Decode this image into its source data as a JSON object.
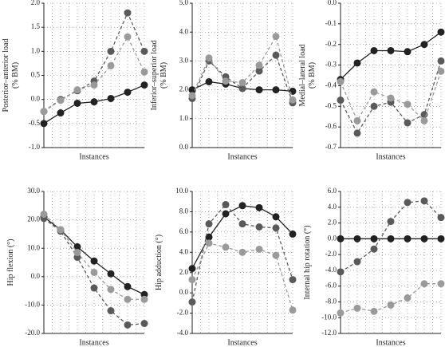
{
  "chart_data": [
    {
      "type": "line",
      "ylabel": [
        "Posterior–anterior load",
        "(% BM)"
      ],
      "xlabel": "Instances",
      "categories": [
        null,
        null,
        null,
        null,
        null,
        null,
        null
      ],
      "ylim": [
        -1,
        2
      ],
      "yticks": [
        {
          "value": -1,
          "label": "-1.0"
        },
        {
          "value": -0.5,
          "label": "-0.5"
        },
        {
          "value": 0,
          "label": "0.0"
        },
        {
          "value": 0.5,
          "label": "0.5"
        },
        {
          "value": 1,
          "label": "1.0"
        },
        {
          "value": 1.5,
          "label": "1.5"
        },
        {
          "value": 2,
          "label": "2.0"
        }
      ],
      "grid": true,
      "series": [
        {
          "color": "#222222",
          "values": [
            -0.5,
            -0.28,
            -0.08,
            -0.05,
            0.02,
            0.15,
            0.3
          ]
        },
        {
          "color": "#5a5a5a",
          "values": [
            -0.25,
            0.0,
            0.18,
            0.38,
            1.0,
            1.8,
            1.0
          ]
        },
        {
          "color": "#9a9a9a",
          "values": [
            -0.25,
            -0.02,
            0.2,
            0.3,
            0.7,
            1.3,
            0.57
          ]
        }
      ]
    },
    {
      "type": "line",
      "ylabel": [
        "Inferior–superior load",
        "(% BM)"
      ],
      "xlabel": "Instances",
      "categories": [
        null,
        null,
        null,
        null,
        null,
        null,
        null
      ],
      "ylim": [
        0,
        5
      ],
      "yticks": [
        {
          "value": 0,
          "label": "0.0"
        },
        {
          "value": 1,
          "label": "1.0"
        },
        {
          "value": 2,
          "label": "2.0"
        },
        {
          "value": 3,
          "label": "3.0"
        },
        {
          "value": 4,
          "label": "4.0"
        },
        {
          "value": 5,
          "label": "5.0"
        }
      ],
      "grid": true,
      "series": [
        {
          "color": "#222222",
          "values": [
            2.0,
            2.28,
            2.2,
            2.05,
            2.0,
            2.0,
            1.95
          ]
        },
        {
          "color": "#5a5a5a",
          "values": [
            1.7,
            3.0,
            2.45,
            2.05,
            2.65,
            3.2,
            1.55
          ]
        },
        {
          "color": "#9a9a9a",
          "values": [
            1.8,
            3.1,
            2.3,
            2.25,
            2.85,
            3.85,
            1.65
          ]
        }
      ]
    },
    {
      "type": "line",
      "ylabel": [
        "Medial–lateral load",
        "(% BM)"
      ],
      "xlabel": "Instances",
      "categories": [
        null,
        null,
        null,
        null,
        null,
        null,
        null
      ],
      "ylim": [
        -0.7,
        0
      ],
      "yticks": [
        -0.7,
        -0.6,
        -0.5,
        -0.4,
        -0.3,
        -0.2,
        -0.1,
        {
          "value": 0,
          "label": "0.0"
        }
      ],
      "grid": true,
      "series": [
        {
          "color": "#222222",
          "values": [
            -0.37,
            -0.29,
            -0.23,
            -0.23,
            -0.235,
            -0.2,
            -0.14
          ]
        },
        {
          "color": "#5a5a5a",
          "values": [
            -0.47,
            -0.63,
            -0.5,
            -0.48,
            -0.58,
            -0.54,
            -0.28
          ]
        },
        {
          "color": "#9a9a9a",
          "values": [
            -0.38,
            -0.57,
            -0.43,
            -0.46,
            -0.49,
            -0.57,
            -0.33
          ]
        }
      ]
    },
    {
      "type": "line",
      "ylabel": [
        "Hip flexion (°)"
      ],
      "xlabel": "Instances",
      "categories": [
        null,
        null,
        null,
        null,
        null,
        null,
        null
      ],
      "ylim": [
        -20,
        30
      ],
      "yticks": [
        {
          "value": -20,
          "label": "-20.0"
        },
        {
          "value": -10,
          "label": "-10.0"
        },
        {
          "value": 0,
          "label": "0.0"
        },
        {
          "value": 10,
          "label": "10.0"
        },
        {
          "value": 20,
          "label": "20.0"
        },
        {
          "value": 30,
          "label": "30.0"
        }
      ],
      "grid": true,
      "series": [
        {
          "color": "#222222",
          "values": [
            21,
            16.5,
            10.5,
            5.5,
            1,
            -3.5,
            -6.3
          ]
        },
        {
          "color": "#5a5a5a",
          "values": [
            20.5,
            16,
            6.8,
            -4,
            -12,
            -17,
            -16.5
          ]
        },
        {
          "color": "#9a9a9a",
          "values": [
            22,
            16.5,
            8.5,
            1.5,
            -4.5,
            -8,
            -8
          ]
        }
      ]
    },
    {
      "type": "line",
      "ylabel": [
        "Hip adduction (°)"
      ],
      "xlabel": "Instances",
      "categories": [
        null,
        null,
        null,
        null,
        null,
        null,
        null
      ],
      "ylim": [
        -4,
        10
      ],
      "yticks": [
        {
          "value": -4,
          "label": "-4.0"
        },
        {
          "value": -2,
          "label": "-2.0"
        },
        {
          "value": 0,
          "label": "0.0"
        },
        {
          "value": 2,
          "label": "2.0"
        },
        {
          "value": 4,
          "label": "4.0"
        },
        {
          "value": 6,
          "label": "6.0"
        },
        {
          "value": 8,
          "label": "8.0"
        },
        {
          "value": 10,
          "label": "10.0"
        }
      ],
      "grid": true,
      "series": [
        {
          "color": "#222222",
          "values": [
            2.4,
            5.5,
            7.8,
            8.6,
            8.4,
            7.5,
            5.8
          ]
        },
        {
          "color": "#5a5a5a",
          "values": [
            -0.9,
            6.8,
            8.7,
            6.8,
            6.5,
            6.4,
            1.3
          ]
        },
        {
          "color": "#9a9a9a",
          "values": [
            1.3,
            4.9,
            4.5,
            4.0,
            4.3,
            3.7,
            -1.7
          ]
        }
      ]
    },
    {
      "type": "line",
      "ylabel": [
        "Internal hip rotation (°)"
      ],
      "xlabel": "Instances",
      "categories": [
        null,
        null,
        null,
        null,
        null,
        null,
        null
      ],
      "ylim": [
        -12,
        6
      ],
      "yticks": [
        {
          "value": -12,
          "label": "-12.0"
        },
        {
          "value": -10,
          "label": "-10.0"
        },
        {
          "value": -8,
          "label": "-8.0"
        },
        {
          "value": -6,
          "label": "-6.0"
        },
        {
          "value": -4,
          "label": "-4.0"
        },
        {
          "value": -2,
          "label": "-2.0"
        },
        {
          "value": 0,
          "label": "0.0"
        },
        {
          "value": 2,
          "label": "2.0"
        },
        {
          "value": 4,
          "label": "4.0"
        },
        {
          "value": 6,
          "label": "6.0"
        }
      ],
      "grid": true,
      "series": [
        {
          "color": "#222222",
          "values": [
            0,
            0,
            0,
            0,
            0,
            0,
            0
          ]
        },
        {
          "color": "#5a5a5a",
          "values": [
            -4.2,
            -2.9,
            -1.3,
            2.2,
            4.6,
            4.8,
            2.7
          ]
        },
        {
          "color": "#9a9a9a",
          "values": [
            -9.4,
            -8.8,
            -9.2,
            -8.4,
            -7.5,
            -5.7,
            -5.7
          ]
        }
      ]
    }
  ]
}
